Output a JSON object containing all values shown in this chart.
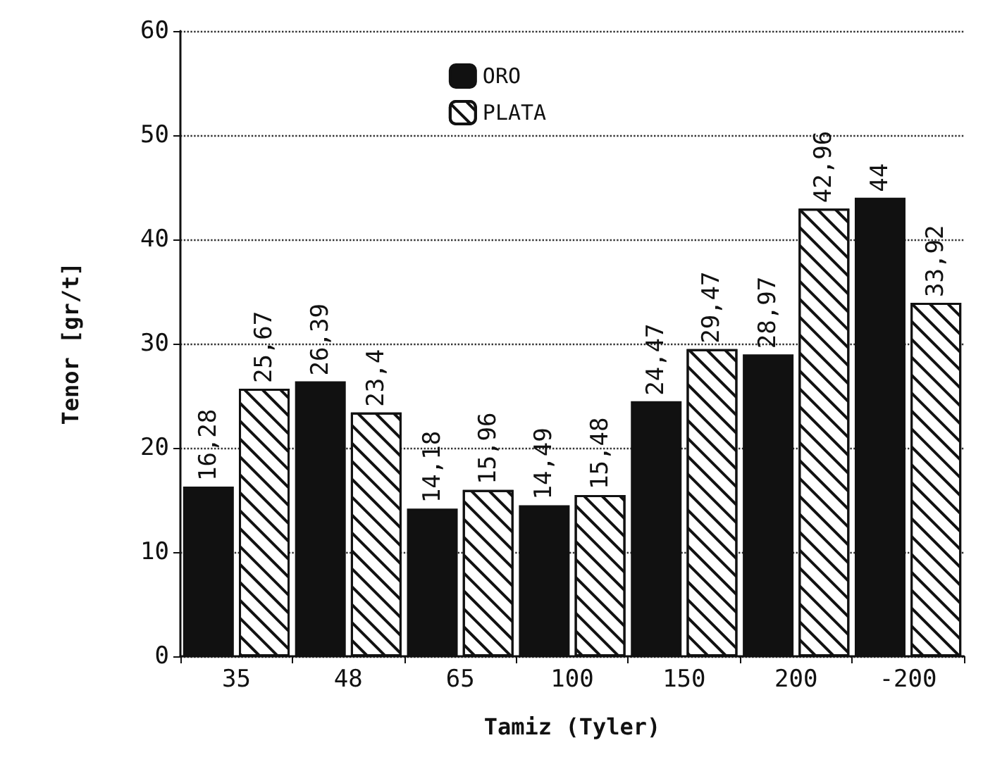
{
  "chart_data": {
    "type": "bar",
    "xlabel": "Tamiz (Tyler)",
    "ylabel": "Tenor [gr/t]",
    "categories": [
      "35",
      "48",
      "65",
      "100",
      "150",
      "200",
      "-200"
    ],
    "series": [
      {
        "name": "ORO",
        "color": "#111111",
        "values": [
          16.28,
          26.39,
          14.18,
          14.49,
          24.47,
          28.97,
          44
        ],
        "value_labels": [
          "16,28",
          "26,39",
          "14,18",
          "14,49",
          "24,47",
          "28,97",
          "44"
        ]
      },
      {
        "name": "PLATA",
        "color": "#ffffff",
        "values": [
          25.67,
          23.4,
          15.96,
          15.48,
          29.47,
          42.96,
          33.92
        ],
        "value_labels": [
          "25,67",
          "23,4",
          "15,96",
          "15,48",
          "29,47",
          "42,96",
          "33,92"
        ]
      }
    ],
    "ylim": [
      0,
      60
    ],
    "yticks": [
      0,
      10,
      20,
      30,
      40,
      50,
      60
    ],
    "grid": "y",
    "legend": "top"
  }
}
